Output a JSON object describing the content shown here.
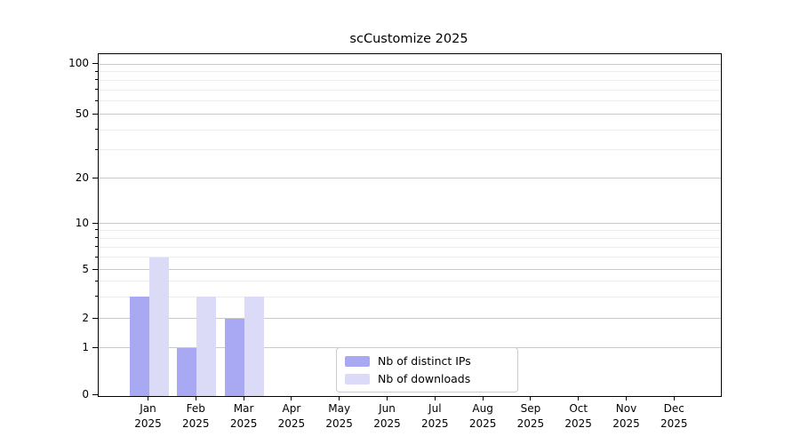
{
  "title": "scCustomize 2025",
  "colors": {
    "distinct_ips": "#a8a8f3",
    "downloads": "#dbdbf8",
    "grid_major": "#c9c9c9",
    "grid_minor": "#ececec",
    "axis": "#000000"
  },
  "chart_data": {
    "type": "bar",
    "title": "scCustomize 2025",
    "categories": [
      "Jan 2025",
      "Feb 2025",
      "Mar 2025",
      "Apr 2025",
      "May 2025",
      "Jun 2025",
      "Jul 2025",
      "Aug 2025",
      "Sep 2025",
      "Oct 2025",
      "Nov 2025",
      "Dec 2025"
    ],
    "series": [
      {
        "name": "Nb of distinct IPs",
        "color": "#a8a8f3",
        "values": [
          3,
          1,
          2,
          0,
          0,
          0,
          0,
          0,
          0,
          0,
          0,
          0
        ]
      },
      {
        "name": "Nb of downloads",
        "color": "#dbdbf8",
        "values": [
          6,
          3,
          3,
          0,
          0,
          0,
          0,
          0,
          0,
          0,
          0,
          0
        ]
      }
    ],
    "xlabel": "",
    "ylabel": "",
    "yscale": "log-like",
    "yticks": [
      0,
      1,
      2,
      5,
      10,
      20,
      50,
      100
    ],
    "yticks_minor": [
      3,
      4,
      6,
      7,
      8,
      9,
      30,
      40,
      60,
      70,
      80,
      90
    ],
    "ylim": [
      0,
      115
    ],
    "grid": "horizontal",
    "legend_position": "lower center"
  }
}
